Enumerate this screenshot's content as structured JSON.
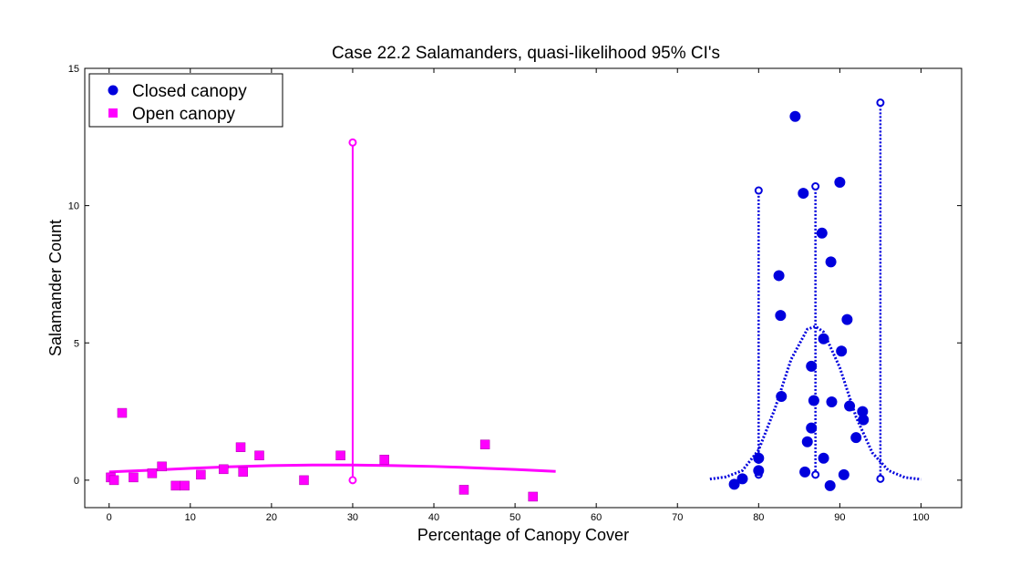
{
  "chart_data": {
    "type": "scatter",
    "title": "Case 22.2 Salamanders, quasi-likelihood 95% CI's",
    "xlabel": "Percentage of Canopy Cover",
    "ylabel": "Salamander Count",
    "xlim": [
      -3,
      105
    ],
    "ylim": [
      -1,
      15
    ],
    "x_ticks": [
      0,
      10,
      20,
      30,
      40,
      50,
      60,
      70,
      80,
      90,
      100
    ],
    "y_ticks": [
      0,
      5,
      10,
      15
    ],
    "grid": false,
    "legend_position": "top-left",
    "series": [
      {
        "name": "Closed canopy",
        "marker": "circle",
        "color": "#0000dd",
        "points": [
          [
            77,
            -0.15
          ],
          [
            78,
            0.05
          ],
          [
            80,
            0.8
          ],
          [
            80,
            0.35
          ],
          [
            82.5,
            7.45
          ],
          [
            82.7,
            6.0
          ],
          [
            82.8,
            3.05
          ],
          [
            84.5,
            13.25
          ],
          [
            85.5,
            10.45
          ],
          [
            85.7,
            0.3
          ],
          [
            86,
            1.4
          ],
          [
            86.5,
            1.9
          ],
          [
            86.5,
            4.15
          ],
          [
            86.8,
            2.9
          ],
          [
            87.8,
            9.0
          ],
          [
            88,
            5.15
          ],
          [
            88,
            0.8
          ],
          [
            88.8,
            -0.2
          ],
          [
            88.9,
            7.95
          ],
          [
            89,
            2.85
          ],
          [
            90,
            10.85
          ],
          [
            90.2,
            4.7
          ],
          [
            90.5,
            0.2
          ],
          [
            90.9,
            5.85
          ],
          [
            91.2,
            2.7
          ],
          [
            92,
            1.55
          ],
          [
            92.8,
            2.5
          ],
          [
            92.9,
            2.2
          ]
        ]
      },
      {
        "name": "Open canopy",
        "marker": "square",
        "color": "#ff00ff",
        "points": [
          [
            0.2,
            0.1
          ],
          [
            0.6,
            0.0
          ],
          [
            1.6,
            2.45
          ],
          [
            3,
            0.1
          ],
          [
            5.3,
            0.25
          ],
          [
            6.5,
            0.5
          ],
          [
            8.2,
            -0.2
          ],
          [
            9.3,
            -0.2
          ],
          [
            11.3,
            0.2
          ],
          [
            14.1,
            0.4
          ],
          [
            16.2,
            1.2
          ],
          [
            16.5,
            0.3
          ],
          [
            18.5,
            0.9
          ],
          [
            24,
            0.0
          ],
          [
            28.5,
            0.9
          ],
          [
            33.9,
            0.75
          ],
          [
            43.7,
            -0.35
          ],
          [
            46.3,
            1.3
          ],
          [
            52.2,
            -0.6
          ]
        ]
      }
    ],
    "fits": [
      {
        "series": "Open canopy",
        "style": "solid",
        "color": "#ff00ff",
        "x": [
          0,
          5,
          10,
          15,
          20,
          25,
          30,
          35,
          40,
          45,
          50,
          55
        ],
        "y": [
          0.3,
          0.36,
          0.43,
          0.49,
          0.53,
          0.55,
          0.55,
          0.53,
          0.5,
          0.45,
          0.39,
          0.32
        ]
      },
      {
        "series": "Closed canopy",
        "style": "dotted",
        "color": "#0000dd",
        "x": [
          74,
          76,
          78,
          80,
          82,
          84,
          86,
          87,
          88,
          90,
          92,
          94,
          96,
          98,
          100
        ],
        "y": [
          0.04,
          0.12,
          0.35,
          1.1,
          2.6,
          4.4,
          5.5,
          5.6,
          5.4,
          4.1,
          2.3,
          1.0,
          0.35,
          0.1,
          0.03
        ]
      }
    ],
    "confidence_intervals": [
      {
        "series": "Open canopy",
        "x": 30,
        "lower": 0.0,
        "upper": 12.3,
        "style": "solid",
        "color": "#ff00ff"
      },
      {
        "series": "Closed canopy",
        "x": 80,
        "lower": 0.2,
        "upper": 10.55,
        "style": "dotted",
        "color": "#0000dd"
      },
      {
        "series": "Closed canopy",
        "x": 87,
        "lower": 0.2,
        "upper": 10.7,
        "style": "dotted",
        "color": "#0000dd"
      },
      {
        "series": "Closed canopy",
        "x": 95,
        "lower": 0.05,
        "upper": 13.75,
        "style": "dotted",
        "color": "#0000dd"
      }
    ]
  }
}
